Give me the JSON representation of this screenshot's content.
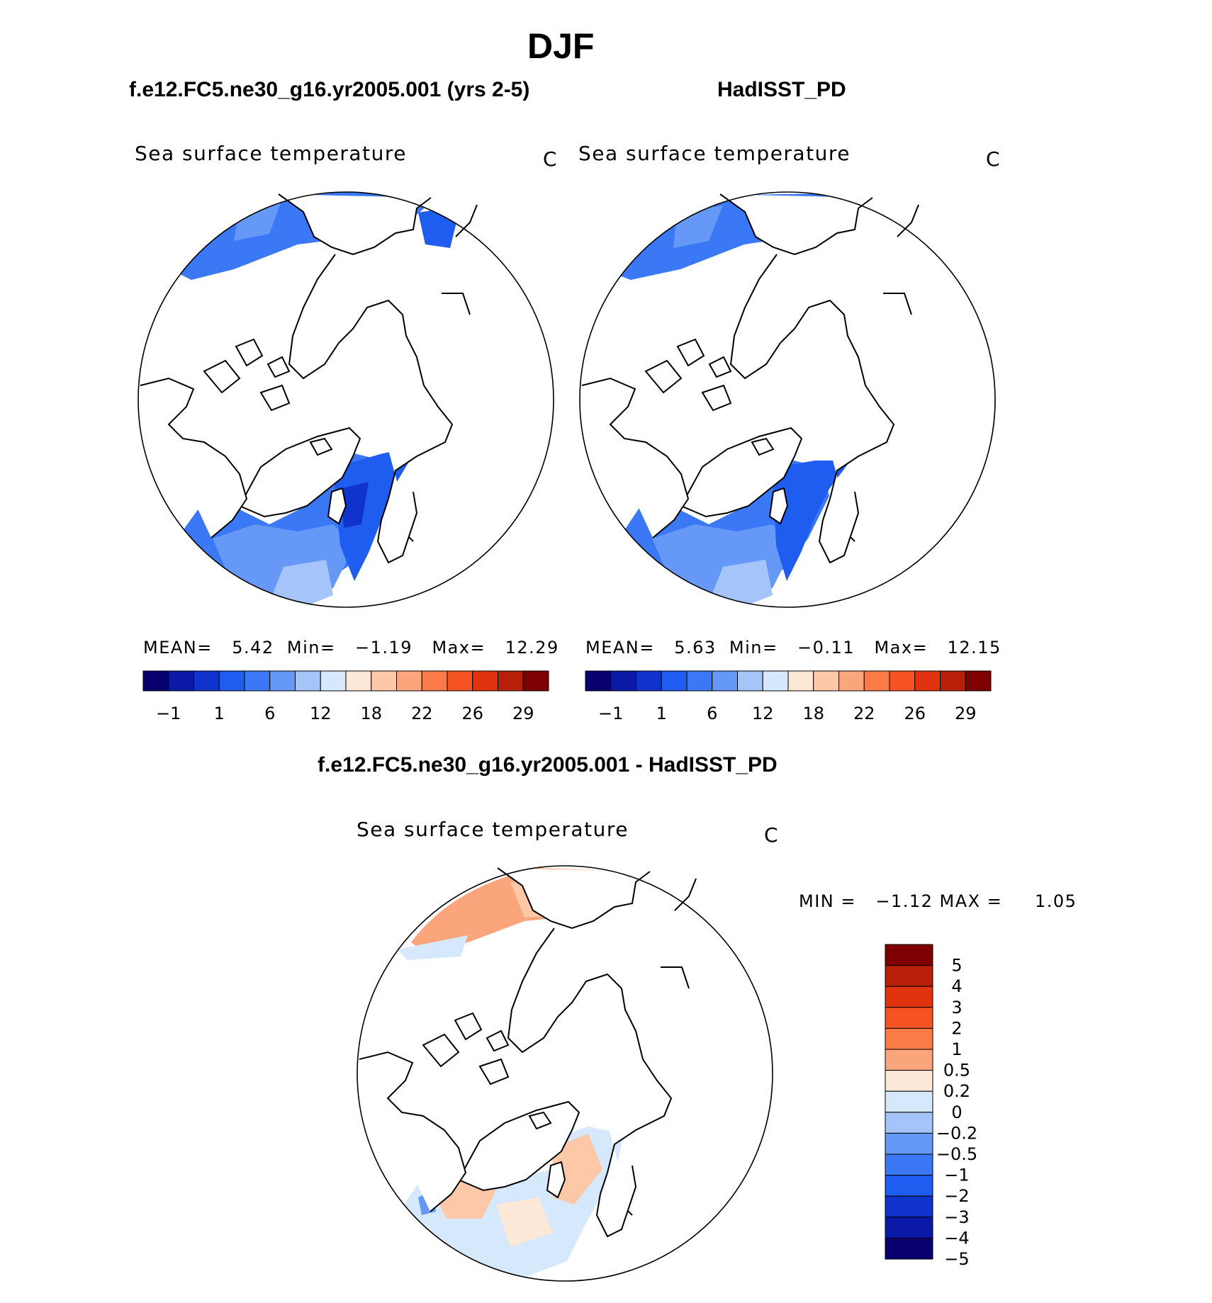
{
  "page": {
    "season": "DJF",
    "panel_left_title": "f.e12.FC5.ne30_g16.yr2005.001 (yrs 2-5)",
    "panel_right_title": "HadISST_PD",
    "diff_title": "f.e12.FC5.ne30_g16.yr2005.001 - HadISST_PD"
  },
  "panels": [
    {
      "variable": "Sea surface temperature",
      "units": "C",
      "stats_line": "MEAN=   5.42  Min=   −1.19   Max=   12.29"
    },
    {
      "variable": "Sea surface temperature",
      "units": "C",
      "stats_line": "MEAN=   5.63  Min=   −0.11   Max=   12.15"
    },
    {
      "variable": "Sea surface temperature",
      "units": "C",
      "stats_line": "MIN =   −1.12 MAX =     1.05"
    }
  ],
  "colorbar_abs": {
    "colors": [
      "#08006f",
      "#0a1aa6",
      "#0f33cc",
      "#1f5cf0",
      "#3a78f5",
      "#6699f7",
      "#a5c4fa",
      "#d6e8fc",
      "#fde8d8",
      "#fcc8a8",
      "#fba57c",
      "#fa7a48",
      "#f55322",
      "#e03410",
      "#b81f08",
      "#7f0000"
    ],
    "tick_labels": [
      "−1",
      "1",
      "6",
      "12",
      "18",
      "22",
      "26",
      "29"
    ]
  },
  "colorbar_diff": {
    "colors": [
      "#7f0000",
      "#b81f08",
      "#e03410",
      "#f55322",
      "#fa7a48",
      "#fba57c",
      "#fde8d8",
      "#d6e8fc",
      "#a5c4fa",
      "#6699f7",
      "#3a78f5",
      "#1f5cf0",
      "#0f33cc",
      "#0a1aa6",
      "#08006f"
    ],
    "tick_labels": [
      "5",
      "4",
      "3",
      "2",
      "1",
      "0.5",
      "0.2",
      "0",
      "−0.2",
      "−0.5",
      "−1",
      "−2",
      "−3",
      "−4",
      "−5"
    ]
  }
}
